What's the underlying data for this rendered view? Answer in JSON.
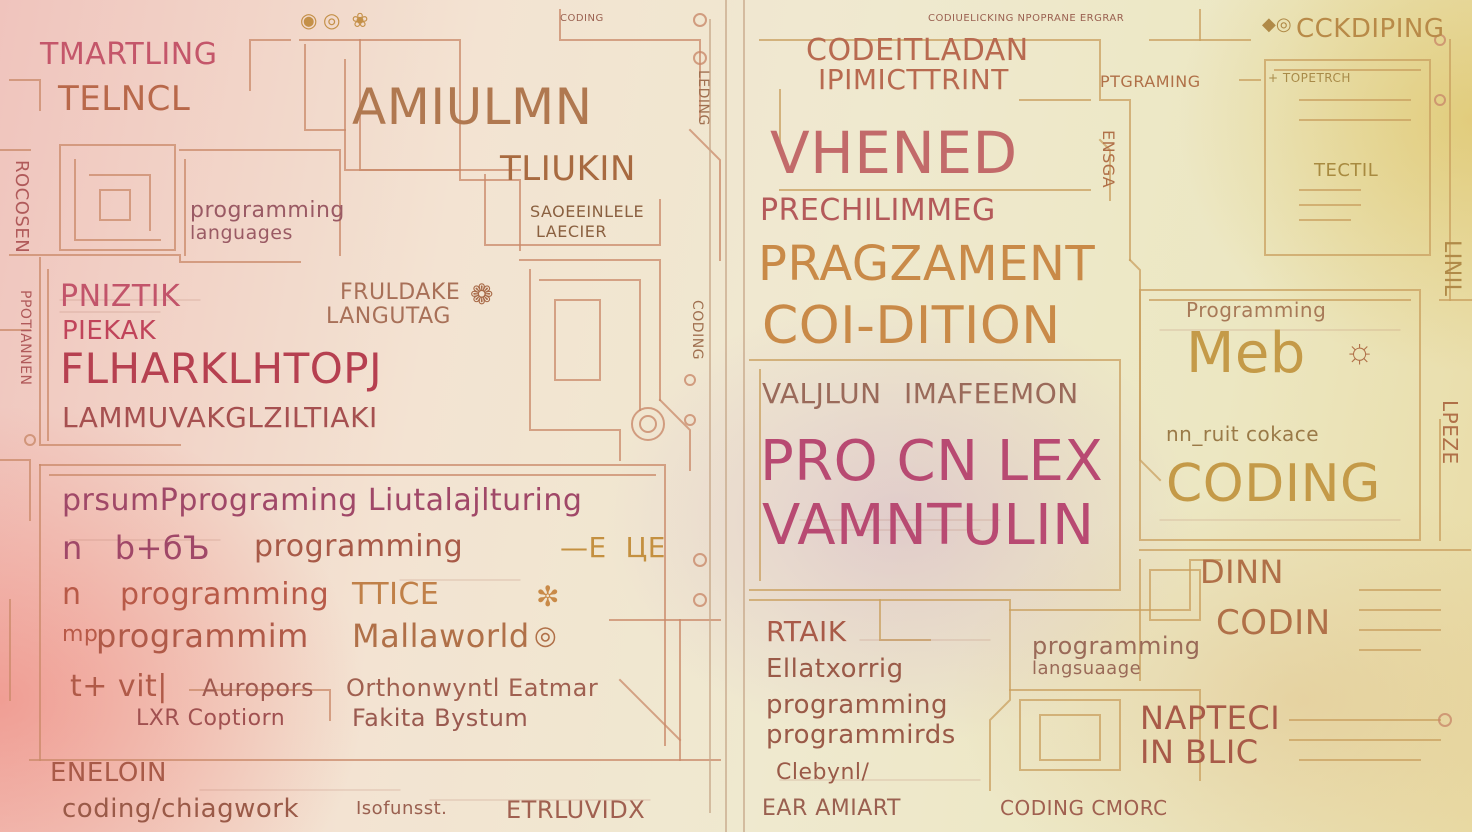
{
  "colors": {
    "red": "#c8565a",
    "rose": "#c45a7a",
    "orange": "#d28a4a",
    "gold": "#c9a046",
    "olive": "#b8a94a",
    "brown": "#9a5a4a",
    "wine": "#a84a5a"
  },
  "texts": {
    "t1": "TMARTLING",
    "t2": "TELNCL",
    "t3": "programming",
    "t4": "languages",
    "t5": "AMIULMN",
    "t6": "TLIUKIN",
    "t7": "SAOEEINLELE",
    "t8": "LAECIER",
    "t9": "ROCOSEN",
    "t10": "PNIZTIK",
    "t11": "FRULDAKE",
    "t12": "LANGUTAG",
    "t13": "PIEKAK",
    "t14": "FLHARKLHTOPJ",
    "t15": "LAMMUVAKGLZILTIAKI",
    "t16": "prsumPprograming Liutalajlturing",
    "t17": "programming",
    "t18": "programming",
    "t19": "TTICE",
    "t20": "programmim",
    "t21": "Mallaworld",
    "t22": "Auropors",
    "t23": "Orthonwyntl Eatmar",
    "t24": "LXR Coptiorn",
    "t25": "Fakita Bystum",
    "t26": "ENELOIN",
    "t27": "coding/chiagwork",
    "t28": "Isofunsst.",
    "t29": "ETRLUVIDX",
    "t30": "CODEITLADAN",
    "t31": "IPIMICTTRINT",
    "t32": "PTGRAMING",
    "t33": "VHENED",
    "t34": "PRECHILIMMEG",
    "t35": "PRAGZAMENT",
    "t36": "COI-DITION",
    "t37": "VALJLUN",
    "t38": "IMAFEEMON",
    "t39": "PRO CN LEX",
    "t40": "VAMNTULIN",
    "t41": "CCKDIPING",
    "t42": "TECTIL",
    "t43": "Programming",
    "t44": "Meb",
    "t45": "nn_ruit cokace",
    "t46": "CODING",
    "t47": "RTAIK",
    "t48": "Ellatxorrig",
    "t49": "programming",
    "t50": "programmirds",
    "t51": "Clebynl/",
    "t52": "EAR AMIART",
    "t53": "DINN",
    "t54": "CODIN",
    "t55": "programming",
    "t56": "langsuaage",
    "t57": "NAPTECI",
    "t58": "IN BLIC",
    "t59": "CODING CMORC",
    "t60": "CODIUELICKING NPOPRANE ERGRAR",
    "t61": "+ TOPETRCH",
    "t62": "CODING",
    "t63": "PPOTIANNEN",
    "t64": "LINIL",
    "t65": "LPEZE",
    "t66": "CODING",
    "t67": "LEDING",
    "t68": "ENSGA"
  }
}
